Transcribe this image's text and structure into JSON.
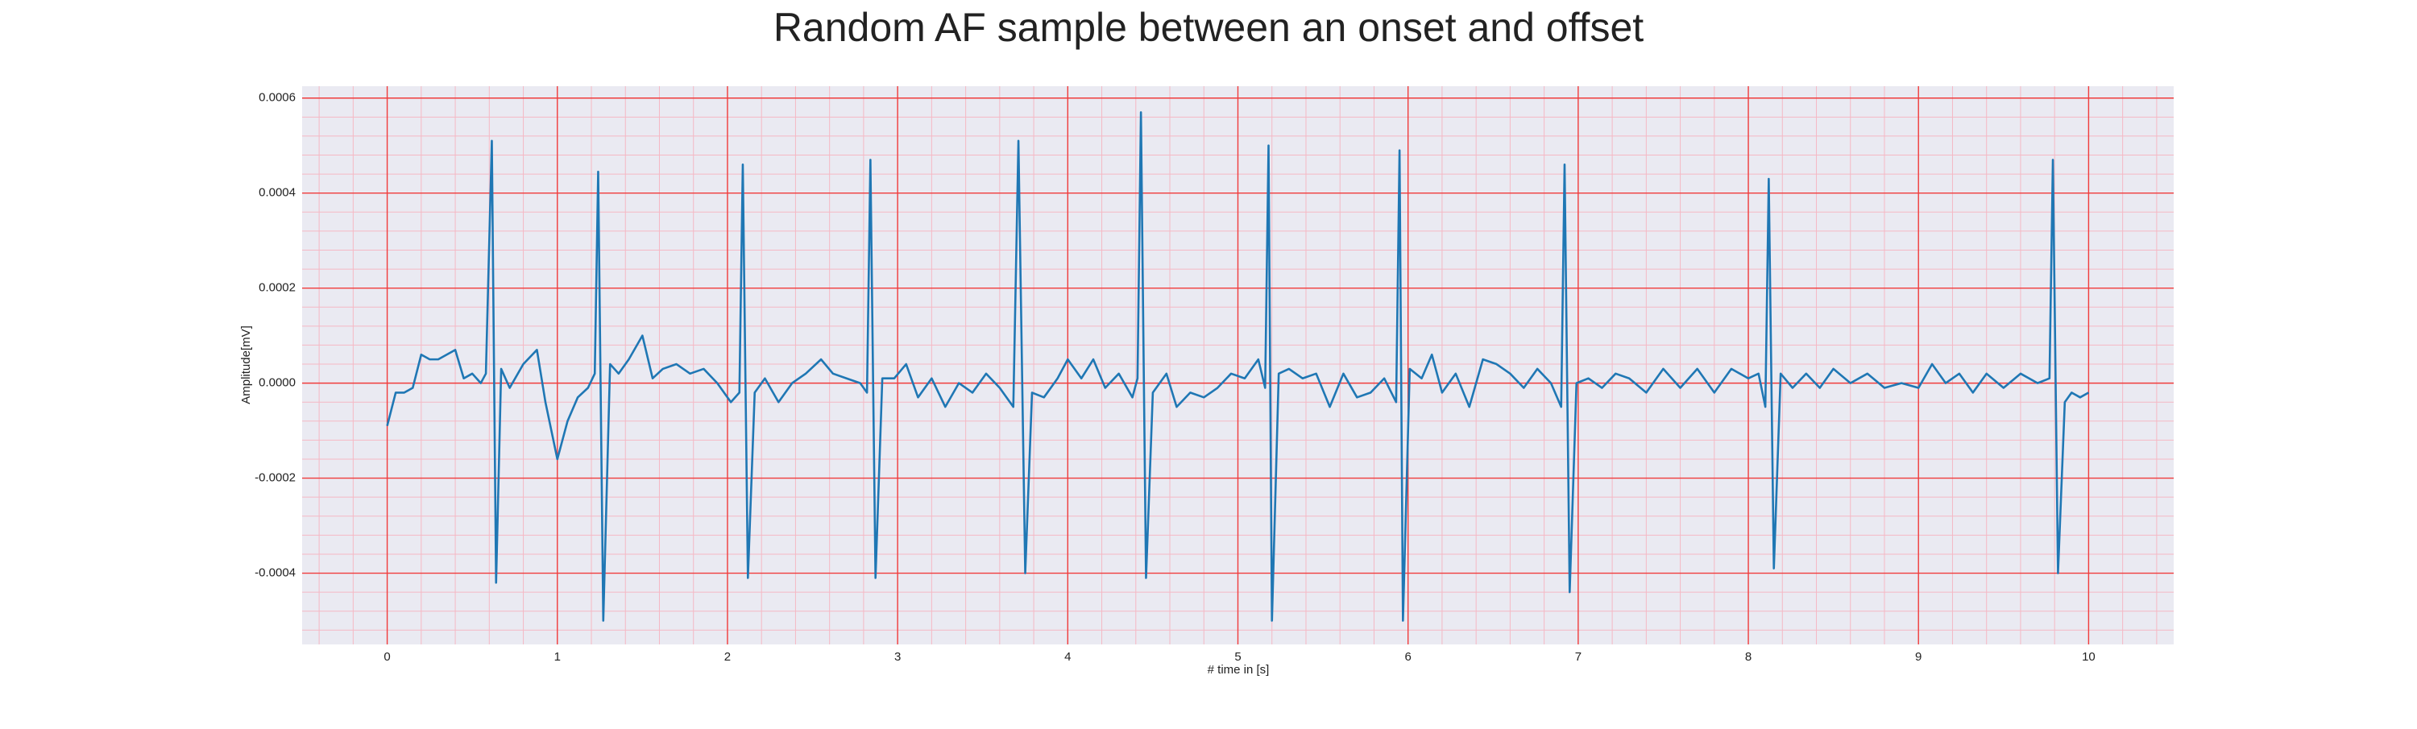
{
  "chart_data": {
    "type": "line",
    "title": "Random AF sample between an onset and offset",
    "xlabel": "# time in [s]",
    "ylabel": "Amplitude[mV]",
    "xlim": [
      -0.5,
      10.5
    ],
    "xticks": [
      0,
      1,
      2,
      3,
      4,
      5,
      6,
      7,
      8,
      9,
      10
    ],
    "ylim": [
      -0.00055,
      0.000625
    ],
    "yticks": [
      -0.0004,
      -0.0002,
      {
        "value": 0,
        "label": "0.0000"
      },
      0.0002,
      0.0004,
      0.0006
    ],
    "grid": true,
    "minor_grid": true,
    "x": [
      0,
      0.05,
      0.1,
      0.15,
      0.2,
      0.25,
      0.3,
      0.35,
      0.4,
      0.45,
      0.5,
      0.55,
      0.58,
      0.615,
      0.64,
      0.67,
      0.72,
      0.8,
      0.88,
      0.93,
      1.0,
      1.06,
      1.12,
      1.18,
      1.22,
      1.24,
      1.27,
      1.31,
      1.36,
      1.42,
      1.5,
      1.56,
      1.62,
      1.7,
      1.78,
      1.86,
      1.94,
      2.02,
      2.07,
      2.09,
      2.12,
      2.16,
      2.22,
      2.3,
      2.38,
      2.46,
      2.55,
      2.62,
      2.7,
      2.78,
      2.82,
      2.84,
      2.87,
      2.91,
      2.98,
      3.05,
      3.12,
      3.2,
      3.28,
      3.36,
      3.44,
      3.52,
      3.6,
      3.68,
      3.71,
      3.75,
      3.79,
      3.86,
      3.94,
      4.0,
      4.08,
      4.15,
      4.22,
      4.3,
      4.38,
      4.41,
      4.43,
      4.46,
      4.5,
      4.58,
      4.64,
      4.72,
      4.8,
      4.88,
      4.96,
      5.04,
      5.12,
      5.16,
      5.18,
      5.2,
      5.24,
      5.3,
      5.38,
      5.46,
      5.54,
      5.62,
      5.7,
      5.78,
      5.86,
      5.93,
      5.95,
      5.97,
      6.01,
      6.08,
      6.14,
      6.2,
      6.28,
      6.36,
      6.44,
      6.52,
      6.6,
      6.68,
      6.76,
      6.84,
      6.9,
      6.92,
      6.95,
      6.99,
      7.06,
      7.14,
      7.22,
      7.3,
      7.4,
      7.5,
      7.6,
      7.7,
      7.8,
      7.9,
      8.0,
      8.06,
      8.1,
      8.12,
      8.15,
      8.19,
      8.26,
      8.34,
      8.42,
      8.5,
      8.6,
      8.7,
      8.8,
      8.9,
      9.0,
      9.08,
      9.16,
      9.24,
      9.32,
      9.4,
      9.5,
      9.6,
      9.7,
      9.77,
      9.79,
      9.82,
      9.86,
      9.9,
      9.95,
      10.0
    ],
    "series": [
      {
        "color": "#1f77b4",
        "values": [
          -9e-05,
          -2e-05,
          -2e-05,
          -1e-05,
          6e-05,
          5e-05,
          5e-05,
          6e-05,
          7e-05,
          1e-05,
          2e-05,
          0,
          2e-05,
          0.00051,
          -0.00042,
          3e-05,
          -1e-05,
          4e-05,
          7e-05,
          -4e-05,
          -0.00016,
          -8e-05,
          -3e-05,
          -1e-05,
          2e-05,
          0.000445,
          -0.0005,
          4e-05,
          2e-05,
          5e-05,
          0.0001,
          1e-05,
          3e-05,
          4e-05,
          2e-05,
          3e-05,
          0,
          -4e-05,
          -2e-05,
          0.00046,
          -0.00041,
          -2e-05,
          1e-05,
          -4e-05,
          0,
          2e-05,
          5e-05,
          2e-05,
          1e-05,
          0,
          -2e-05,
          0.00047,
          -0.00041,
          1e-05,
          1e-05,
          4e-05,
          -3e-05,
          1e-05,
          -5e-05,
          0,
          -2e-05,
          2e-05,
          -1e-05,
          -5e-05,
          0.00051,
          -0.0004,
          -2e-05,
          -3e-05,
          1e-05,
          5e-05,
          1e-05,
          5e-05,
          -1e-05,
          2e-05,
          -3e-05,
          1e-05,
          0.00057,
          -0.00041,
          -2e-05,
          2e-05,
          -5e-05,
          -2e-05,
          -3e-05,
          -1e-05,
          2e-05,
          1e-05,
          5e-05,
          -1e-05,
          0.0005,
          -0.0005,
          2e-05,
          3e-05,
          1e-05,
          2e-05,
          -5e-05,
          2e-05,
          -3e-05,
          -2e-05,
          1e-05,
          -4e-05,
          0.00049,
          -0.0005,
          3e-05,
          1e-05,
          6e-05,
          -2e-05,
          2e-05,
          -5e-05,
          5e-05,
          4e-05,
          2e-05,
          -1e-05,
          3e-05,
          0,
          -5e-05,
          0.00046,
          -0.00044,
          0,
          1e-05,
          -1e-05,
          2e-05,
          1e-05,
          -2e-05,
          3e-05,
          -1e-05,
          3e-05,
          -2e-05,
          3e-05,
          1e-05,
          2e-05,
          -5e-05,
          0.00043,
          -0.00039,
          2e-05,
          -1e-05,
          2e-05,
          -1e-05,
          3e-05,
          0,
          2e-05,
          -1e-05,
          0,
          -1e-05,
          4e-05,
          0,
          2e-05,
          -2e-05,
          2e-05,
          -1e-05,
          2e-05,
          0,
          1e-05,
          0.00047,
          -0.0004,
          -4e-05,
          -2e-05,
          -3e-05,
          -2e-05
        ]
      }
    ]
  }
}
